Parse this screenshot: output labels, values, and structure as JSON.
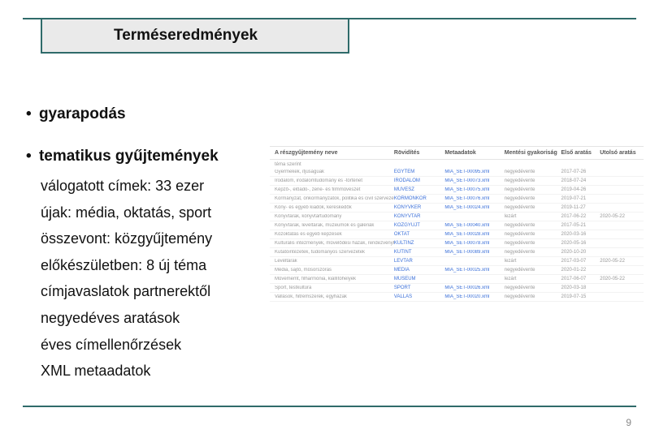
{
  "title": "Terméseredmények",
  "bullets": {
    "b1": "gyarapodás",
    "b2": "tematikus gyűjtemények"
  },
  "subitems": [
    "válogatott címek: 33 ezer",
    "újak: média, oktatás, sport",
    "összevont: közgyűjtemény",
    "előkészületben: 8 új téma",
    "címjavaslatok partnerektől",
    "negyedéves aratások",
    "éves címellenőrzések",
    "XML metaadatok"
  ],
  "table": {
    "headers": {
      "h1": "A részgyűjtemény neve",
      "h2": "Rövidítés",
      "h3": "Metaadatok",
      "h4": "Mentési gyakoriság",
      "h5": "Első aratás",
      "h6": "Utolsó aratás"
    },
    "section": "téma szerint",
    "rows": [
      {
        "c1": "Gyermekek, ifjúságúak",
        "c2": "EGYTEM",
        "c3": "MIA_SET-00095.xml",
        "c4": "negyedévente",
        "c5": "2017-07-26",
        "c6": ""
      },
      {
        "c1": "Irodalom, irodalomtudomány és -történet",
        "c2": "IRODALOM",
        "c3": "MIA_SET-00073.xml",
        "c4": "negyedévente",
        "c5": "2018-07-24",
        "c6": ""
      },
      {
        "c1": "Képző-, előadó-, zene- és filmművészet",
        "c2": "MUVESZ",
        "c3": "MIA_SET-00075.xml",
        "c4": "negyedévente",
        "c5": "2019-04-26",
        "c6": ""
      },
      {
        "c1": "Kormányzat, önkormányzatok, politika és civil szervezetek",
        "c2": "KORMONKOR",
        "c3": "MIA_SET-00076.xml",
        "c4": "negyedévente",
        "c5": "2019-07-21",
        "c6": ""
      },
      {
        "c1": "Köny- és egyéb kiadók, kereskedők",
        "c2": "KONYVKER",
        "c3": "MIA_SET-00024.xml",
        "c4": "negyedévente",
        "c5": "2019-11-27",
        "c6": ""
      },
      {
        "c1": "Könyvtárak, könyvtártudomány",
        "c2": "KONYVTAR",
        "c3": "",
        "c4": "lezárt",
        "c5": "2017-06-22",
        "c6": "2020-05-22"
      },
      {
        "c1": "Könyvtárak, levéltárak, múzeumok és galériák",
        "c2": "KOZGYUJT",
        "c3": "MIA_SET-00040.xml",
        "c4": "negyedévente",
        "c5": "2017-05-21",
        "c6": ""
      },
      {
        "c1": "Közoktatás és egyéb képzések",
        "c2": "OKTAT",
        "c3": "MIA_SET-00028.xml",
        "c4": "negyedévente",
        "c5": "2020-03-16",
        "c6": ""
      },
      {
        "c1": "Kulturális intézmények, művelődési házak, rendezvényhelyszínek",
        "c2": "KULTINZ",
        "c3": "MIA_SET-00078.xml",
        "c4": "negyedévente",
        "c5": "2020-05-16",
        "c6": ""
      },
      {
        "c1": "Kutatóintézetek, tudományos szervezetek",
        "c2": "KUTINT",
        "c3": "MIA_SET-00089.xml",
        "c4": "negyedévente",
        "c5": "2020-10-20",
        "c6": ""
      },
      {
        "c1": "Levéltárak",
        "c2": "LEVTAR",
        "c3": "",
        "c4": "lezárt",
        "c5": "2017-03-07",
        "c6": "2020-05-22"
      },
      {
        "c1": "Média, sajtó, műsorszórás",
        "c2": "MEDIA",
        "c3": "MIA_SET-00025.xml",
        "c4": "negyedévente",
        "c5": "2020-01-22",
        "c6": ""
      },
      {
        "c1": "Művememt, filharmónia, kiállítóhelyek",
        "c2": "MUSEUM",
        "c3": "",
        "c4": "lezárt",
        "c5": "2017-06-07",
        "c6": "2020-05-22"
      },
      {
        "c1": "Sport, testkultúra",
        "c2": "SPORT",
        "c3": "MIA_SET-00026.xml",
        "c4": "negyedévente",
        "c5": "2020-03-18",
        "c6": ""
      },
      {
        "c1": "Vallások, hitremszerek, egyházak",
        "c2": "VALLAS",
        "c3": "MIA_SET-00020.xml",
        "c4": "negyedévente",
        "c5": "2019-07-15",
        "c6": ""
      }
    ]
  },
  "page_number": "9",
  "colors": {
    "teal": "#2f6b6a",
    "title_bg": "#eaeaea",
    "link": "#3a6fd8",
    "muted": "#9a9a9a"
  }
}
